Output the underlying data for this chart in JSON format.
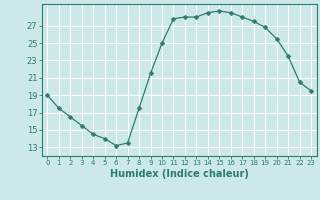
{
  "x": [
    0,
    1,
    2,
    3,
    4,
    5,
    6,
    7,
    8,
    9,
    10,
    11,
    12,
    13,
    14,
    15,
    16,
    17,
    18,
    19,
    20,
    21,
    22,
    23
  ],
  "y": [
    19,
    17.5,
    16.5,
    15.5,
    14.5,
    14,
    13.2,
    13.5,
    17.5,
    21.5,
    25,
    27.8,
    28,
    28,
    28.5,
    28.7,
    28.5,
    28,
    27.5,
    26.8,
    25.5,
    23.5,
    20.5,
    19.5
  ],
  "line_color": "#2d7d6e",
  "marker": "D",
  "marker_size": 2.5,
  "bg_color": "#cce8e8",
  "grid_color": "#ffffff",
  "tick_color": "#2d7d6e",
  "xlabel": "Humidex (Indice chaleur)",
  "xlabel_fontsize": 7,
  "ylabel_ticks": [
    13,
    15,
    17,
    19,
    21,
    23,
    25,
    27
  ],
  "xlim": [
    -0.5,
    23.5
  ],
  "ylim": [
    12.0,
    29.5
  ],
  "xticks": [
    0,
    1,
    2,
    3,
    4,
    5,
    6,
    7,
    8,
    9,
    10,
    11,
    12,
    13,
    14,
    15,
    16,
    17,
    18,
    19,
    20,
    21,
    22,
    23
  ]
}
